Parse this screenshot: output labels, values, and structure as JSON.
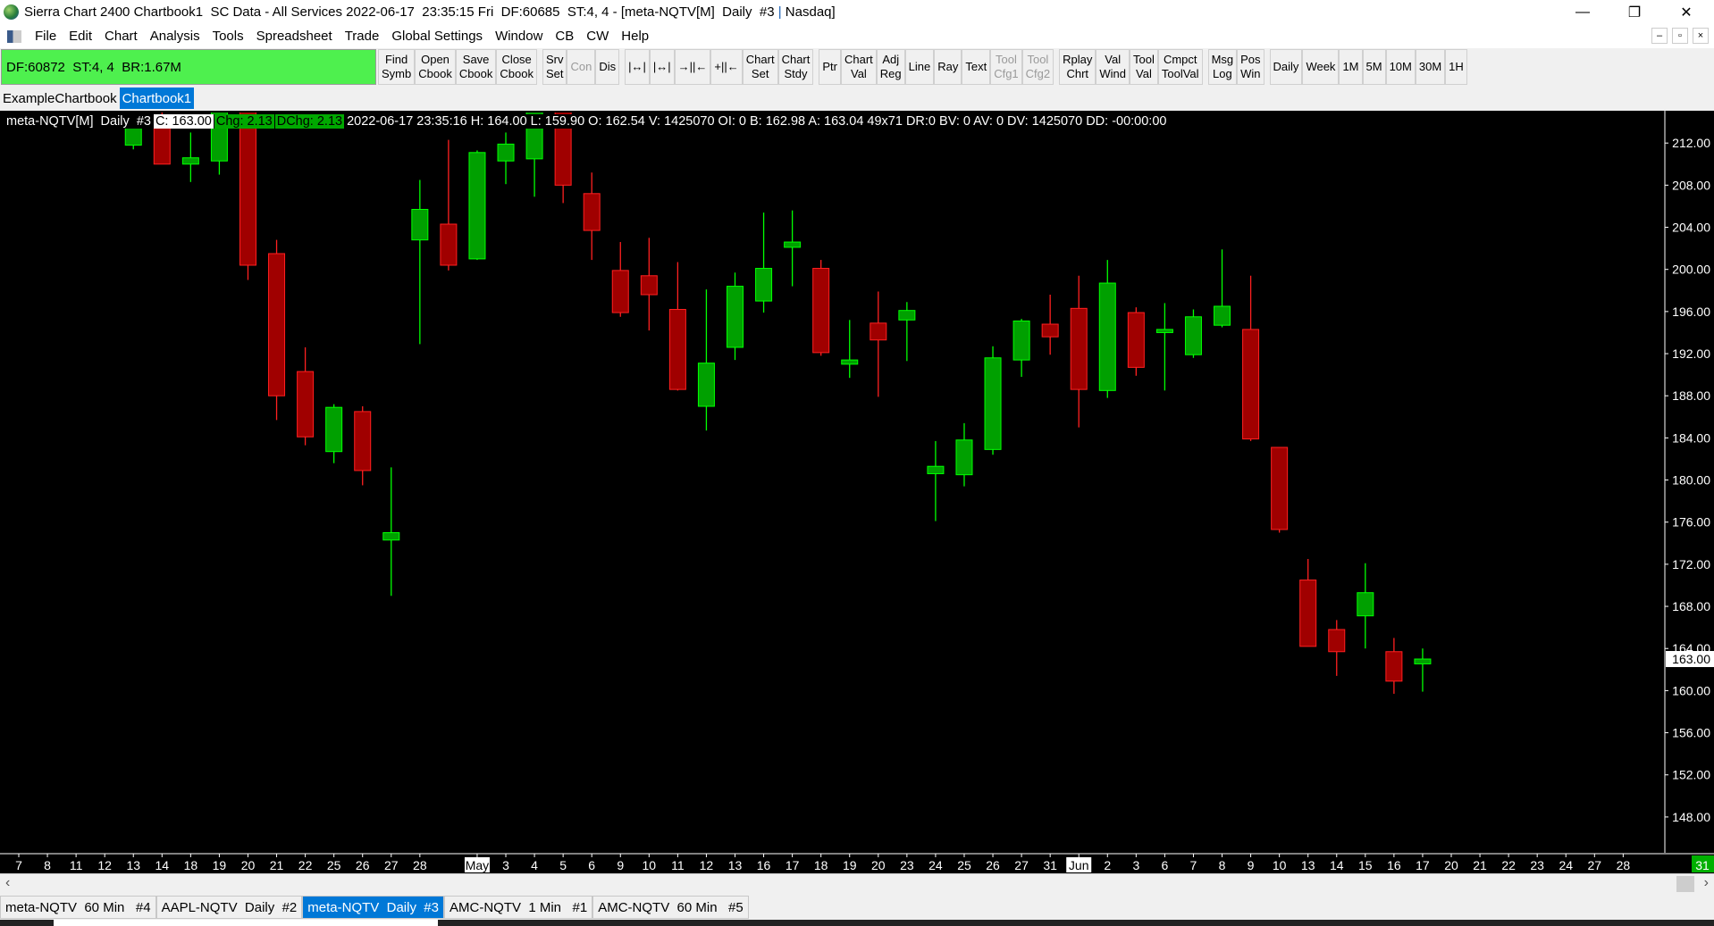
{
  "window": {
    "title": "Sierra Chart 2400 Chartbook1  SC Data - All Services 2022-06-17  23:35:15 Fri  DF:60685  ST:4, 4 - [meta-NQTV[M]  Daily  #3",
    "title_suffix": "Nasdaq]",
    "controls": {
      "minimize": "—",
      "restore": "❐",
      "close": "✕"
    }
  },
  "menu": [
    "File",
    "Edit",
    "Chart",
    "Analysis",
    "Tools",
    "Spreadsheet",
    "Trade",
    "Global Settings",
    "Window",
    "CB",
    "CW",
    "Help"
  ],
  "mdi_controls": [
    "–",
    "▫",
    "×"
  ],
  "status_box": "DF:60872  ST:4, 4  BR:1.67M",
  "toolbar": [
    {
      "label": "Find\nSymb",
      "enabled": true
    },
    {
      "label": "Open\nCbook",
      "enabled": true
    },
    {
      "label": "Save\nCbook",
      "enabled": true
    },
    {
      "label": "Close\nCbook",
      "enabled": true
    },
    {
      "label": "Srv\nSet",
      "enabled": true,
      "gap": true
    },
    {
      "label": "Con",
      "enabled": false
    },
    {
      "label": "Dis",
      "enabled": true
    },
    {
      "label": "|↔|",
      "enabled": true,
      "gap": true
    },
    {
      "label": "|↔|",
      "enabled": true
    },
    {
      "label": "→||←",
      "enabled": true
    },
    {
      "label": "+||←",
      "enabled": true
    },
    {
      "label": "Chart\nSet",
      "enabled": true
    },
    {
      "label": "Chart\nStdy",
      "enabled": true
    },
    {
      "label": "Ptr",
      "enabled": true,
      "gap": true
    },
    {
      "label": "Chart\nVal",
      "enabled": true
    },
    {
      "label": "Adj\nReg",
      "enabled": true
    },
    {
      "label": "Line",
      "enabled": true
    },
    {
      "label": "Ray",
      "enabled": true
    },
    {
      "label": "Text",
      "enabled": true
    },
    {
      "label": "Tool\nCfg1",
      "enabled": false
    },
    {
      "label": "Tool\nCfg2",
      "enabled": false
    },
    {
      "label": "Rplay\nChrt",
      "enabled": true,
      "gap": true
    },
    {
      "label": "Val\nWind",
      "enabled": true
    },
    {
      "label": "Tool\nVal",
      "enabled": true
    },
    {
      "label": "Cmpct\nToolVal",
      "enabled": true
    },
    {
      "label": "Msg\nLog",
      "enabled": true,
      "gap": true
    },
    {
      "label": "Pos\nWin",
      "enabled": true
    },
    {
      "label": "Daily",
      "enabled": true,
      "gap": true
    },
    {
      "label": "Week",
      "enabled": true
    },
    {
      "label": "1M",
      "enabled": true
    },
    {
      "label": "5M",
      "enabled": true
    },
    {
      "label": "10M",
      "enabled": true
    },
    {
      "label": "30M",
      "enabled": true
    },
    {
      "label": "1H",
      "enabled": true
    }
  ],
  "chartbook_tabs": [
    {
      "label": "ExampleChartbook",
      "active": false
    },
    {
      "label": "Chartbook1",
      "active": true
    }
  ],
  "info_line": {
    "symbol": "meta-NQTV[M]  Daily  #3",
    "close": "C: 163.00",
    "chg": "Chg: 2.13",
    "dchg": "DChg: 2.13",
    "rest": "2022-06-17 23:35:16 H: 164.00 L: 159.90 O: 162.54 V: 1425070 OI: 0 B: 162.98 A: 163.04 49x71 DR:0 BV: 0 AV: 0 DV: 1425070 DD: -00:00:00"
  },
  "chart_data": {
    "type": "candlestick",
    "ylim": [
      144.6,
      214.9
    ],
    "yticks": [
      "212.00",
      "208.00",
      "204.00",
      "200.00",
      "196.00",
      "192.00",
      "188.00",
      "184.00",
      "180.00",
      "176.00",
      "172.00",
      "168.00",
      "164.00",
      "160.00",
      "156.00",
      "152.00",
      "148.00"
    ],
    "last_price_label": "163.00",
    "colors": {
      "up": "#00c000",
      "down": "#c00000",
      "up_fill": "#00a000",
      "down_fill": "#a00000",
      "wick_up": "#00ff00",
      "wick_down": "#ff2020"
    },
    "xticks": [
      "7",
      "8",
      "11",
      "12",
      "13",
      "14",
      "18",
      "19",
      "20",
      "21",
      "22",
      "25",
      "26",
      "27",
      "28",
      "",
      "May",
      "3",
      "4",
      "5",
      "6",
      "9",
      "10",
      "11",
      "12",
      "13",
      "16",
      "17",
      "18",
      "19",
      "20",
      "23",
      "24",
      "25",
      "26",
      "27",
      "31",
      "Jun",
      "2",
      "3",
      "6",
      "7",
      "8",
      "9",
      "10",
      "13",
      "14",
      "15",
      "16",
      "17",
      "20",
      "21",
      "22",
      "23",
      "24",
      "27",
      "28"
    ],
    "highlighted_xticks": [
      "May",
      "Jun"
    ],
    "corner_label": "31",
    "first_candle_slot": 4,
    "candles": [
      {
        "date": "2022-04-13",
        "o": 211.8,
        "h": 214.0,
        "l": 211.4,
        "c": 213.6
      },
      {
        "date": "2022-04-14",
        "o": 214.5,
        "h": 215.0,
        "l": 210.0,
        "c": 210.0
      },
      {
        "date": "2022-04-18",
        "o": 210.0,
        "h": 213.0,
        "l": 208.3,
        "c": 210.6
      },
      {
        "date": "2022-04-19",
        "o": 210.3,
        "h": 215.0,
        "l": 209.0,
        "c": 215.0
      },
      {
        "date": "2022-04-20",
        "o": 215.0,
        "h": 215.0,
        "l": 199.0,
        "c": 200.4
      },
      {
        "date": "2022-04-21",
        "o": 201.5,
        "h": 202.8,
        "l": 185.7,
        "c": 188.0
      },
      {
        "date": "2022-04-22",
        "o": 190.3,
        "h": 192.6,
        "l": 183.3,
        "c": 184.1
      },
      {
        "date": "2022-04-25",
        "o": 182.7,
        "h": 187.2,
        "l": 181.6,
        "c": 186.9
      },
      {
        "date": "2022-04-26",
        "o": 186.5,
        "h": 187.0,
        "l": 179.5,
        "c": 180.9
      },
      {
        "date": "2022-04-27",
        "o": 174.3,
        "h": 181.2,
        "l": 169.0,
        "c": 175.0
      },
      {
        "date": "2022-04-28",
        "o": 202.8,
        "h": 208.5,
        "l": 192.9,
        "c": 205.7
      },
      {
        "date": "2022-04-29",
        "o": 204.3,
        "h": 212.3,
        "l": 199.9,
        "c": 200.4
      },
      {
        "date": "2022-05-02",
        "o": 201.0,
        "h": 211.3,
        "l": 200.9,
        "c": 211.1
      },
      {
        "date": "2022-05-03",
        "o": 210.3,
        "h": 213.0,
        "l": 208.1,
        "c": 211.9
      },
      {
        "date": "2022-05-04",
        "o": 210.5,
        "h": 215.0,
        "l": 206.9,
        "c": 215.0
      },
      {
        "date": "2022-05-05",
        "o": 215.0,
        "h": 215.0,
        "l": 206.3,
        "c": 208.0
      },
      {
        "date": "2022-05-06",
        "o": 207.2,
        "h": 209.2,
        "l": 200.9,
        "c": 203.7
      },
      {
        "date": "2022-05-09",
        "o": 199.9,
        "h": 202.6,
        "l": 195.5,
        "c": 195.9
      },
      {
        "date": "2022-05-10",
        "o": 199.4,
        "h": 203.0,
        "l": 194.2,
        "c": 197.6
      },
      {
        "date": "2022-05-11",
        "o": 196.2,
        "h": 200.7,
        "l": 188.5,
        "c": 188.6
      },
      {
        "date": "2022-05-12",
        "o": 187.0,
        "h": 198.1,
        "l": 184.7,
        "c": 191.1
      },
      {
        "date": "2022-05-13",
        "o": 192.6,
        "h": 199.7,
        "l": 191.4,
        "c": 198.4
      },
      {
        "date": "2022-05-16",
        "o": 197.0,
        "h": 205.4,
        "l": 195.9,
        "c": 200.1
      },
      {
        "date": "2022-05-17",
        "o": 202.1,
        "h": 205.6,
        "l": 198.4,
        "c": 202.6
      },
      {
        "date": "2022-05-18",
        "o": 200.1,
        "h": 200.9,
        "l": 191.8,
        "c": 192.1
      },
      {
        "date": "2022-05-19",
        "o": 191.0,
        "h": 195.2,
        "l": 189.7,
        "c": 191.4
      },
      {
        "date": "2022-05-20",
        "o": 194.9,
        "h": 197.9,
        "l": 187.9,
        "c": 193.3
      },
      {
        "date": "2022-05-23",
        "o": 195.2,
        "h": 196.9,
        "l": 191.3,
        "c": 196.1
      },
      {
        "date": "2022-05-24",
        "o": 180.6,
        "h": 183.7,
        "l": 176.1,
        "c": 181.3
      },
      {
        "date": "2022-05-25",
        "o": 180.5,
        "h": 185.4,
        "l": 179.4,
        "c": 183.8
      },
      {
        "date": "2022-05-26",
        "o": 182.9,
        "h": 192.7,
        "l": 182.4,
        "c": 191.6
      },
      {
        "date": "2022-05-27",
        "o": 191.4,
        "h": 195.3,
        "l": 189.8,
        "c": 195.1
      },
      {
        "date": "2022-05-31",
        "o": 194.8,
        "h": 197.6,
        "l": 191.9,
        "c": 193.6
      },
      {
        "date": "2022-06-01",
        "o": 196.3,
        "h": 199.4,
        "l": 185.0,
        "c": 188.6
      },
      {
        "date": "2022-06-02",
        "o": 188.5,
        "h": 200.9,
        "l": 187.8,
        "c": 198.7
      },
      {
        "date": "2022-06-03",
        "o": 195.9,
        "h": 196.4,
        "l": 189.9,
        "c": 190.7
      },
      {
        "date": "2022-06-06",
        "o": 194.0,
        "h": 196.8,
        "l": 188.5,
        "c": 194.3
      },
      {
        "date": "2022-06-07",
        "o": 191.9,
        "h": 196.2,
        "l": 191.6,
        "c": 195.5
      },
      {
        "date": "2022-06-08",
        "o": 194.7,
        "h": 201.9,
        "l": 194.5,
        "c": 196.5
      },
      {
        "date": "2022-06-09",
        "o": 194.3,
        "h": 199.4,
        "l": 183.7,
        "c": 183.9
      },
      {
        "date": "2022-06-10",
        "o": 183.1,
        "h": 183.1,
        "l": 175.0,
        "c": 175.3
      },
      {
        "date": "2022-06-13",
        "o": 170.5,
        "h": 172.5,
        "l": 164.2,
        "c": 164.2
      },
      {
        "date": "2022-06-14",
        "o": 165.8,
        "h": 166.7,
        "l": 161.4,
        "c": 163.7
      },
      {
        "date": "2022-06-15",
        "o": 167.1,
        "h": 172.1,
        "l": 164.0,
        "c": 169.3
      },
      {
        "date": "2022-06-16",
        "o": 163.7,
        "h": 165.0,
        "l": 159.7,
        "c": 160.9
      },
      {
        "date": "2022-06-17",
        "o": 162.54,
        "h": 164.0,
        "l": 159.9,
        "c": 163.0
      }
    ]
  },
  "chart_tabs": [
    {
      "label": "meta-NQTV  60 Min   #4",
      "active": false
    },
    {
      "label": "AAPL-NQTV  Daily  #2",
      "active": false
    },
    {
      "label": "meta-NQTV  Daily  #3",
      "active": true
    },
    {
      "label": "AMC-NQTV  1 Min   #1",
      "active": false
    },
    {
      "label": "AMC-NQTV  60 Min   #5",
      "active": false
    }
  ],
  "scrollbar": {
    "left_arrow": "‹",
    "right_arrow": "›"
  }
}
